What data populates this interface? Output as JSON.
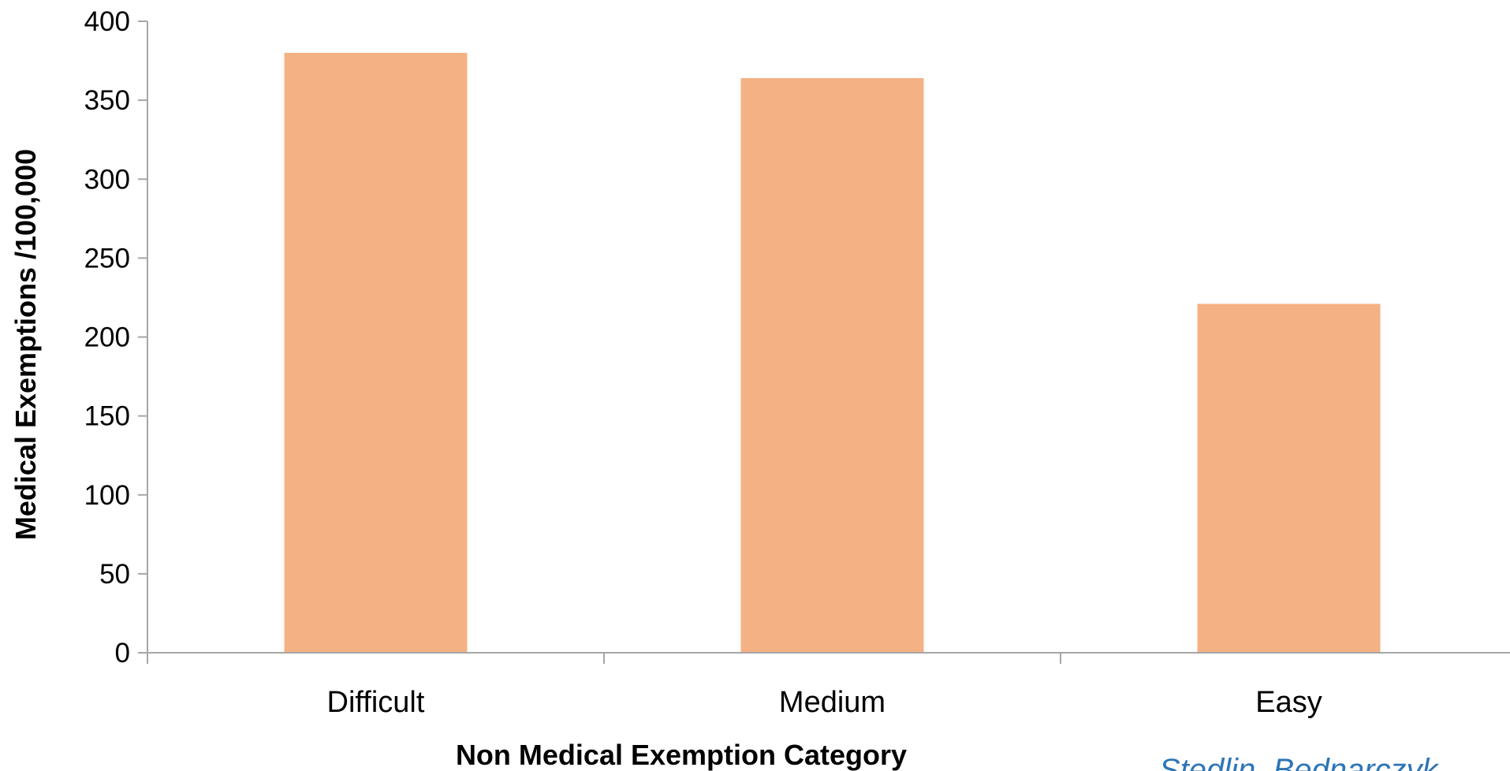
{
  "chart_data": {
    "type": "bar",
    "categories": [
      "Difficult",
      "Medium",
      "Easy"
    ],
    "values": [
      380,
      364,
      221
    ],
    "xlabel": "Non Medical Exemption Category",
    "ylabel": "Medical Exemptions /100,000",
    "ylim": [
      0,
      400
    ],
    "yticks": [
      0,
      50,
      100,
      150,
      200,
      250,
      300,
      350,
      400
    ],
    "grid": false,
    "bar_color": "#F4B183",
    "axis_color": "#A6A6A6"
  },
  "annotation": {
    "credit_text": "Stedlin, Bednarczyk",
    "credit_color": "#2E75B6"
  }
}
